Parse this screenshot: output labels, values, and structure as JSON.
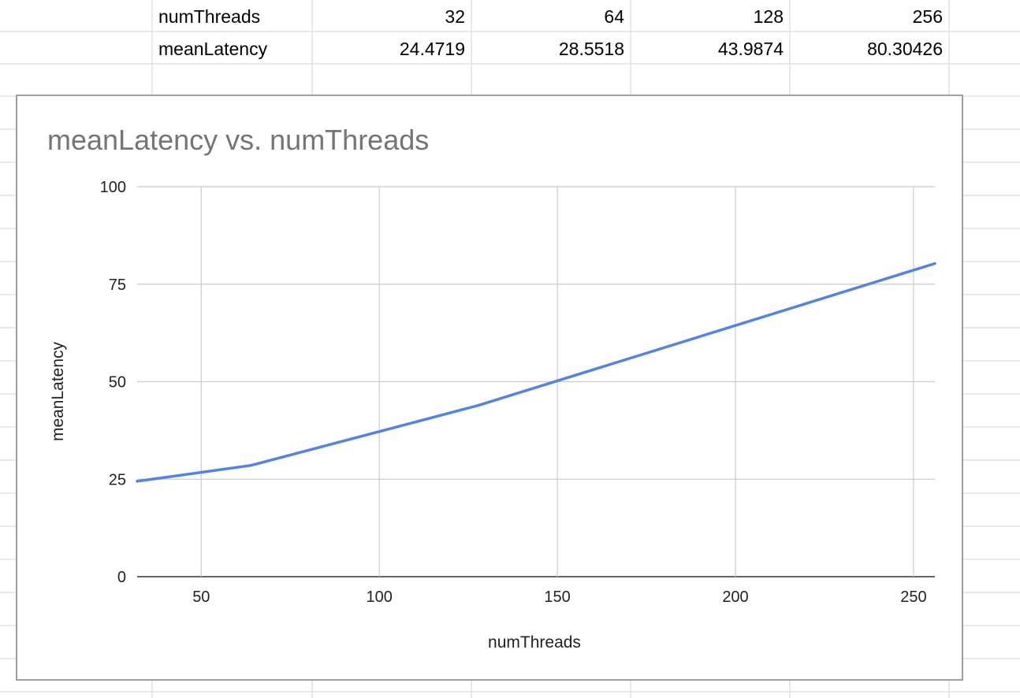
{
  "sheet": {
    "rows": [
      {
        "label": "numThreads",
        "values": [
          "32",
          "64",
          "128",
          "256"
        ]
      },
      {
        "label": "meanLatency",
        "values": [
          "24.4719",
          "28.5518",
          "43.9874",
          "80.30426"
        ]
      }
    ]
  },
  "colors": {
    "gridline": "#e2e2e2",
    "chart_border": "#9e9e9e",
    "chart_gridline": "#cccccc",
    "series_line": "#5383e3",
    "title": "#757575"
  },
  "chart_data": {
    "type": "line",
    "title": "meanLatency vs. numThreads",
    "xlabel": "numThreads",
    "ylabel": "meanLatency",
    "x": [
      32,
      64,
      128,
      256
    ],
    "series": [
      {
        "values": [
          24.4719,
          28.5518,
          43.9874,
          80.30426
        ]
      }
    ],
    "xlim": [
      32,
      256
    ],
    "ylim": [
      0,
      100
    ],
    "xticks": [
      50,
      100,
      150,
      200,
      250
    ],
    "yticks": [
      0,
      25,
      50,
      75,
      100
    ],
    "grid": true,
    "legend": "none"
  }
}
